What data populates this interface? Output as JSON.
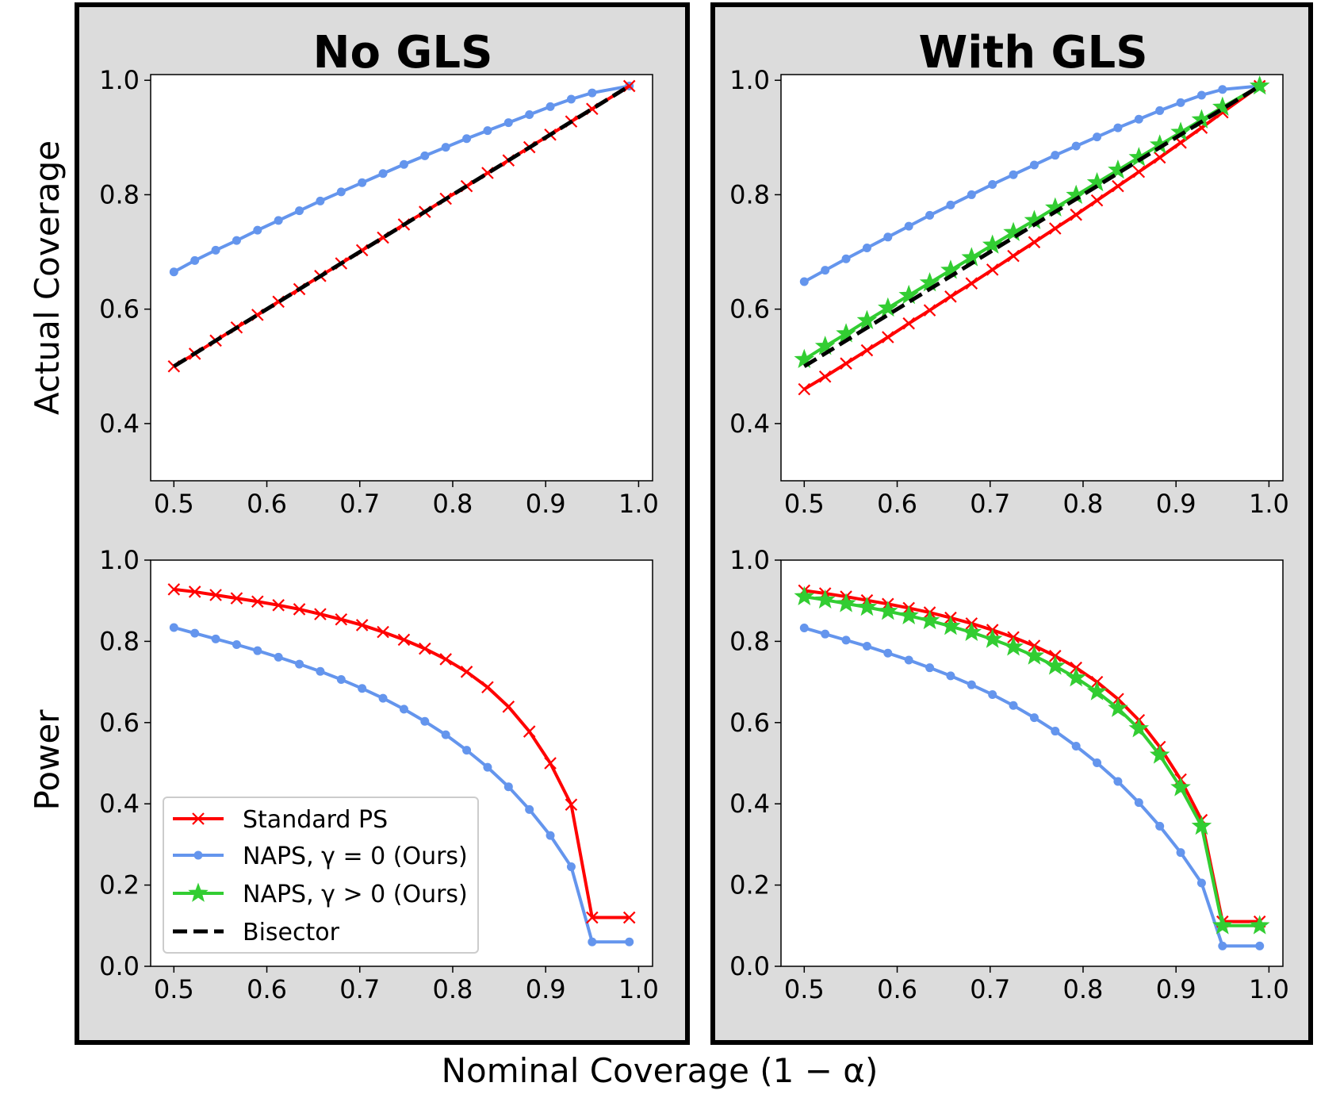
{
  "figure": {
    "ylabel_top": "Actual Coverage",
    "ylabel_bottom": "Power",
    "xlabel": "Nominal Coverage (1 − α)"
  },
  "panels": [
    {
      "title": "No GLS"
    },
    {
      "title": "With GLS"
    }
  ],
  "legend": {
    "entries": [
      {
        "label": "Standard PS",
        "series": "standard"
      },
      {
        "label": "NAPS, γ = 0 (Ours)",
        "series": "naps0"
      },
      {
        "label": "NAPS, γ > 0 (Ours)",
        "series": "napsg"
      },
      {
        "label": "Bisector",
        "series": "bisector"
      }
    ]
  },
  "colors": {
    "standard": "#ff0000",
    "naps0": "#6495ed",
    "napsg": "#32cd32",
    "bisector": "#000000",
    "panel_bg": "#dcdcdc",
    "frame": "#000000"
  },
  "chart_data": [
    {
      "id": "coverage_no_gls",
      "type": "line",
      "panel": "No GLS",
      "title": "",
      "xlabel": "",
      "ylabel": "Actual Coverage",
      "xlim": [
        0.475,
        1.015
      ],
      "ylim": [
        0.3,
        1.01
      ],
      "xticks": [
        "0.5",
        "0.6",
        "0.7",
        "0.8",
        "0.9",
        "1.0"
      ],
      "yticks": [
        "0.4",
        "0.6",
        "0.8",
        "1.0"
      ],
      "x": [
        0.5,
        0.5225,
        0.545,
        0.5675,
        0.59,
        0.6125,
        0.635,
        0.6575,
        0.68,
        0.7025,
        0.725,
        0.7475,
        0.77,
        0.7925,
        0.815,
        0.8375,
        0.86,
        0.8825,
        0.905,
        0.9275,
        0.95,
        0.99
      ],
      "series": [
        {
          "name": "Standard PS",
          "key": "standard",
          "values": [
            0.5,
            0.522,
            0.545,
            0.568,
            0.59,
            0.613,
            0.635,
            0.658,
            0.68,
            0.703,
            0.725,
            0.748,
            0.77,
            0.793,
            0.815,
            0.838,
            0.86,
            0.883,
            0.905,
            0.928,
            0.95,
            0.99
          ]
        },
        {
          "name": "NAPS, γ = 0 (Ours)",
          "key": "naps0",
          "values": [
            0.665,
            0.685,
            0.703,
            0.72,
            0.738,
            0.755,
            0.772,
            0.789,
            0.805,
            0.821,
            0.837,
            0.853,
            0.868,
            0.883,
            0.898,
            0.912,
            0.926,
            0.94,
            0.954,
            0.967,
            0.978,
            0.99
          ]
        },
        {
          "name": "Bisector",
          "key": "bisector",
          "x": [
            0.5,
            0.99
          ],
          "values": [
            0.5,
            0.99
          ]
        }
      ]
    },
    {
      "id": "coverage_with_gls",
      "type": "line",
      "panel": "With GLS",
      "title": "",
      "xlabel": "",
      "ylabel": "",
      "xlim": [
        0.475,
        1.015
      ],
      "ylim": [
        0.3,
        1.01
      ],
      "xticks": [
        "0.5",
        "0.6",
        "0.7",
        "0.8",
        "0.9",
        "1.0"
      ],
      "yticks": [
        "0.4",
        "0.6",
        "0.8",
        "1.0"
      ],
      "x": [
        0.5,
        0.5225,
        0.545,
        0.5675,
        0.59,
        0.6125,
        0.635,
        0.6575,
        0.68,
        0.7025,
        0.725,
        0.7475,
        0.77,
        0.7925,
        0.815,
        0.8375,
        0.86,
        0.8825,
        0.905,
        0.9275,
        0.95,
        0.99
      ],
      "series": [
        {
          "name": "Standard PS",
          "key": "standard",
          "values": [
            0.46,
            0.482,
            0.505,
            0.528,
            0.551,
            0.575,
            0.598,
            0.622,
            0.645,
            0.669,
            0.693,
            0.717,
            0.741,
            0.765,
            0.79,
            0.815,
            0.84,
            0.865,
            0.891,
            0.917,
            0.944,
            0.99
          ]
        },
        {
          "name": "NAPS, γ = 0 (Ours)",
          "key": "naps0",
          "values": [
            0.648,
            0.668,
            0.688,
            0.707,
            0.726,
            0.745,
            0.764,
            0.782,
            0.8,
            0.818,
            0.835,
            0.852,
            0.869,
            0.885,
            0.901,
            0.917,
            0.932,
            0.947,
            0.961,
            0.974,
            0.984,
            0.99
          ]
        },
        {
          "name": "NAPS, γ > 0 (Ours)",
          "key": "napsg",
          "values": [
            0.512,
            0.535,
            0.557,
            0.58,
            0.602,
            0.624,
            0.646,
            0.668,
            0.69,
            0.712,
            0.734,
            0.755,
            0.777,
            0.799,
            0.821,
            0.843,
            0.865,
            0.887,
            0.909,
            0.931,
            0.953,
            0.99
          ]
        },
        {
          "name": "Bisector",
          "key": "bisector",
          "x": [
            0.5,
            0.99
          ],
          "values": [
            0.5,
            0.99
          ]
        }
      ]
    },
    {
      "id": "power_no_gls",
      "type": "line",
      "panel": "No GLS",
      "title": "",
      "xlabel": "",
      "ylabel": "Power",
      "xlim": [
        0.475,
        1.015
      ],
      "ylim": [
        0.0,
        1.0
      ],
      "xticks": [
        "0.5",
        "0.6",
        "0.7",
        "0.8",
        "0.9",
        "1.0"
      ],
      "yticks": [
        "0.0",
        "0.2",
        "0.4",
        "0.6",
        "0.8",
        "1.0"
      ],
      "x": [
        0.5,
        0.5225,
        0.545,
        0.5675,
        0.59,
        0.6125,
        0.635,
        0.6575,
        0.68,
        0.7025,
        0.725,
        0.7475,
        0.77,
        0.7925,
        0.815,
        0.8375,
        0.86,
        0.8825,
        0.905,
        0.9275,
        0.95,
        0.99
      ],
      "series": [
        {
          "name": "Standard PS",
          "key": "standard",
          "values": [
            0.928,
            0.922,
            0.914,
            0.906,
            0.898,
            0.889,
            0.879,
            0.867,
            0.854,
            0.84,
            0.823,
            0.804,
            0.782,
            0.756,
            0.725,
            0.687,
            0.639,
            0.578,
            0.5,
            0.398,
            0.12,
            0.12
          ]
        },
        {
          "name": "NAPS, γ = 0 (Ours)",
          "key": "naps0",
          "values": [
            0.834,
            0.82,
            0.806,
            0.792,
            0.777,
            0.761,
            0.744,
            0.726,
            0.706,
            0.684,
            0.66,
            0.633,
            0.603,
            0.57,
            0.532,
            0.49,
            0.442,
            0.386,
            0.322,
            0.245,
            0.06,
            0.06
          ]
        }
      ]
    },
    {
      "id": "power_with_gls",
      "type": "line",
      "panel": "With GLS",
      "title": "",
      "xlabel": "",
      "ylabel": "",
      "xlim": [
        0.475,
        1.015
      ],
      "ylim": [
        0.0,
        1.0
      ],
      "xticks": [
        "0.5",
        "0.6",
        "0.7",
        "0.8",
        "0.9",
        "1.0"
      ],
      "yticks": [
        "0.0",
        "0.2",
        "0.4",
        "0.6",
        "0.8",
        "1.0"
      ],
      "x": [
        0.5,
        0.5225,
        0.545,
        0.5675,
        0.59,
        0.6125,
        0.635,
        0.6575,
        0.68,
        0.7025,
        0.725,
        0.7475,
        0.77,
        0.7925,
        0.815,
        0.8375,
        0.86,
        0.8825,
        0.905,
        0.9275,
        0.95,
        0.99
      ],
      "series": [
        {
          "name": "Standard PS",
          "key": "standard",
          "values": [
            0.925,
            0.918,
            0.91,
            0.901,
            0.892,
            0.882,
            0.871,
            0.858,
            0.844,
            0.828,
            0.81,
            0.789,
            0.764,
            0.735,
            0.7,
            0.658,
            0.606,
            0.54,
            0.46,
            0.36,
            0.11,
            0.11
          ]
        },
        {
          "name": "NAPS, γ = 0 (Ours)",
          "key": "naps0",
          "values": [
            0.833,
            0.818,
            0.803,
            0.788,
            0.771,
            0.754,
            0.735,
            0.715,
            0.693,
            0.669,
            0.642,
            0.612,
            0.579,
            0.542,
            0.501,
            0.455,
            0.403,
            0.345,
            0.28,
            0.205,
            0.05,
            0.05
          ]
        },
        {
          "name": "NAPS, γ > 0 (Ours)",
          "key": "napsg",
          "values": [
            0.91,
            0.902,
            0.893,
            0.884,
            0.874,
            0.863,
            0.851,
            0.837,
            0.822,
            0.805,
            0.786,
            0.764,
            0.739,
            0.71,
            0.676,
            0.635,
            0.585,
            0.52,
            0.44,
            0.345,
            0.1,
            0.1
          ]
        }
      ]
    }
  ]
}
